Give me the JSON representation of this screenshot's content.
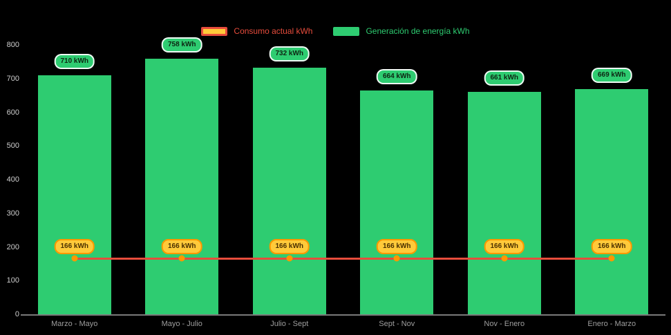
{
  "legend": {
    "consumption_label": "Consumo actual kWh",
    "generation_label": "Generación de energía kWh"
  },
  "colors": {
    "generation": "#2ecc71",
    "consumption_line": "#e74c3c",
    "consumption_fill": "#ffca3a",
    "consumption_border": "#ff9800"
  },
  "chart_data": {
    "type": "bar",
    "categories": [
      "Marzo - Mayo",
      "Mayo - Julio",
      "Julio - Sept",
      "Sept - Nov",
      "Nov - Enero",
      "Enero - Marzo"
    ],
    "series": [
      {
        "name": "Generación de energía kWh",
        "type": "bar",
        "values": [
          710,
          758,
          732,
          664,
          661,
          669
        ]
      },
      {
        "name": "Consumo actual kWh",
        "type": "line",
        "values": [
          166,
          166,
          166,
          166,
          166,
          166
        ]
      }
    ],
    "bar_labels": [
      "710 kWh",
      "758 kWh",
      "732 kWh",
      "664 kWh",
      "661 kWh",
      "669 kWh"
    ],
    "line_labels": [
      "166 kWh",
      "166 kWh",
      "166 kWh",
      "166 kWh",
      "166 kWh",
      "166 kWh"
    ],
    "ylim": [
      0,
      800
    ],
    "yticks": [
      0,
      100,
      200,
      300,
      400,
      500,
      600,
      700,
      800
    ],
    "legend_position": "top",
    "grid": false,
    "title": "",
    "xlabel": "",
    "ylabel": ""
  }
}
